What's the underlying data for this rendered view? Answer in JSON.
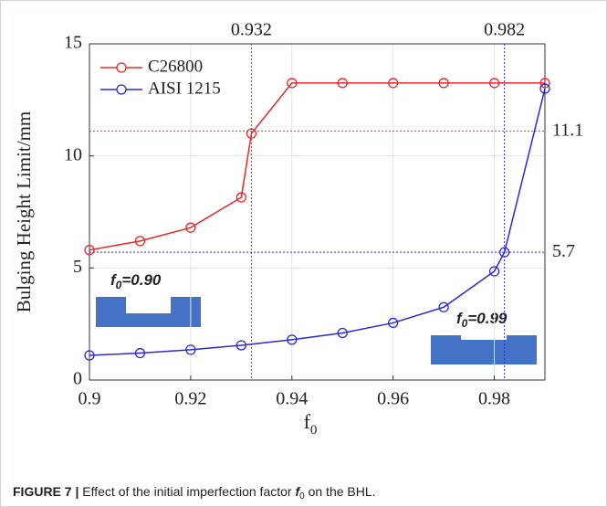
{
  "chart_data": {
    "type": "line",
    "ylabel": "Bulging Height Limit/mm",
    "xlabel": {
      "main": "f",
      "sub": "0"
    },
    "xlim": [
      0.9,
      0.99
    ],
    "xticks": [
      0.9,
      0.92,
      0.94,
      0.96,
      0.98
    ],
    "ylim": [
      0,
      15
    ],
    "yticks": [
      0,
      5,
      10,
      15
    ],
    "grid": true,
    "legend": "upper left",
    "series": [
      {
        "name": "C26800",
        "color": "#e8282b",
        "x": [
          0.9,
          0.91,
          0.92,
          0.93,
          0.932,
          0.94,
          0.95,
          0.96,
          0.97,
          0.98,
          0.99
        ],
        "values": [
          5.8,
          6.2,
          6.8,
          8.15,
          11.0,
          13.25,
          13.25,
          13.25,
          13.25,
          13.25,
          13.25
        ]
      },
      {
        "name": "AISI 1215",
        "color": "#2a2ad0",
        "x": [
          0.9,
          0.91,
          0.92,
          0.93,
          0.94,
          0.95,
          0.96,
          0.97,
          0.98,
          0.982,
          0.99
        ],
        "values": [
          1.1,
          1.2,
          1.35,
          1.55,
          1.8,
          2.1,
          2.55,
          3.25,
          4.85,
          5.7,
          13.0
        ]
      }
    ],
    "reference_lines": [
      {
        "axis": "x",
        "value": 0.932,
        "color": "#e8282b"
      },
      {
        "axis": "x",
        "value": 0.982,
        "color": "#2a2ad0"
      },
      {
        "axis": "y",
        "value": 11.1,
        "color": "#e8282b"
      },
      {
        "axis": "y",
        "value": 5.7,
        "color": "#2a2ad0"
      }
    ],
    "annotations": [
      {
        "main": "f",
        "sub": "0",
        "rest": "=0.90"
      },
      {
        "main": "f",
        "sub": "0",
        "rest": "=0.99"
      }
    ]
  },
  "caption": {
    "label": "FIGURE 7 |",
    "text": "Effect of the initial imperfection factor",
    "symbol": "f",
    "symbol_sub": "0",
    "end": "on the BHL."
  }
}
